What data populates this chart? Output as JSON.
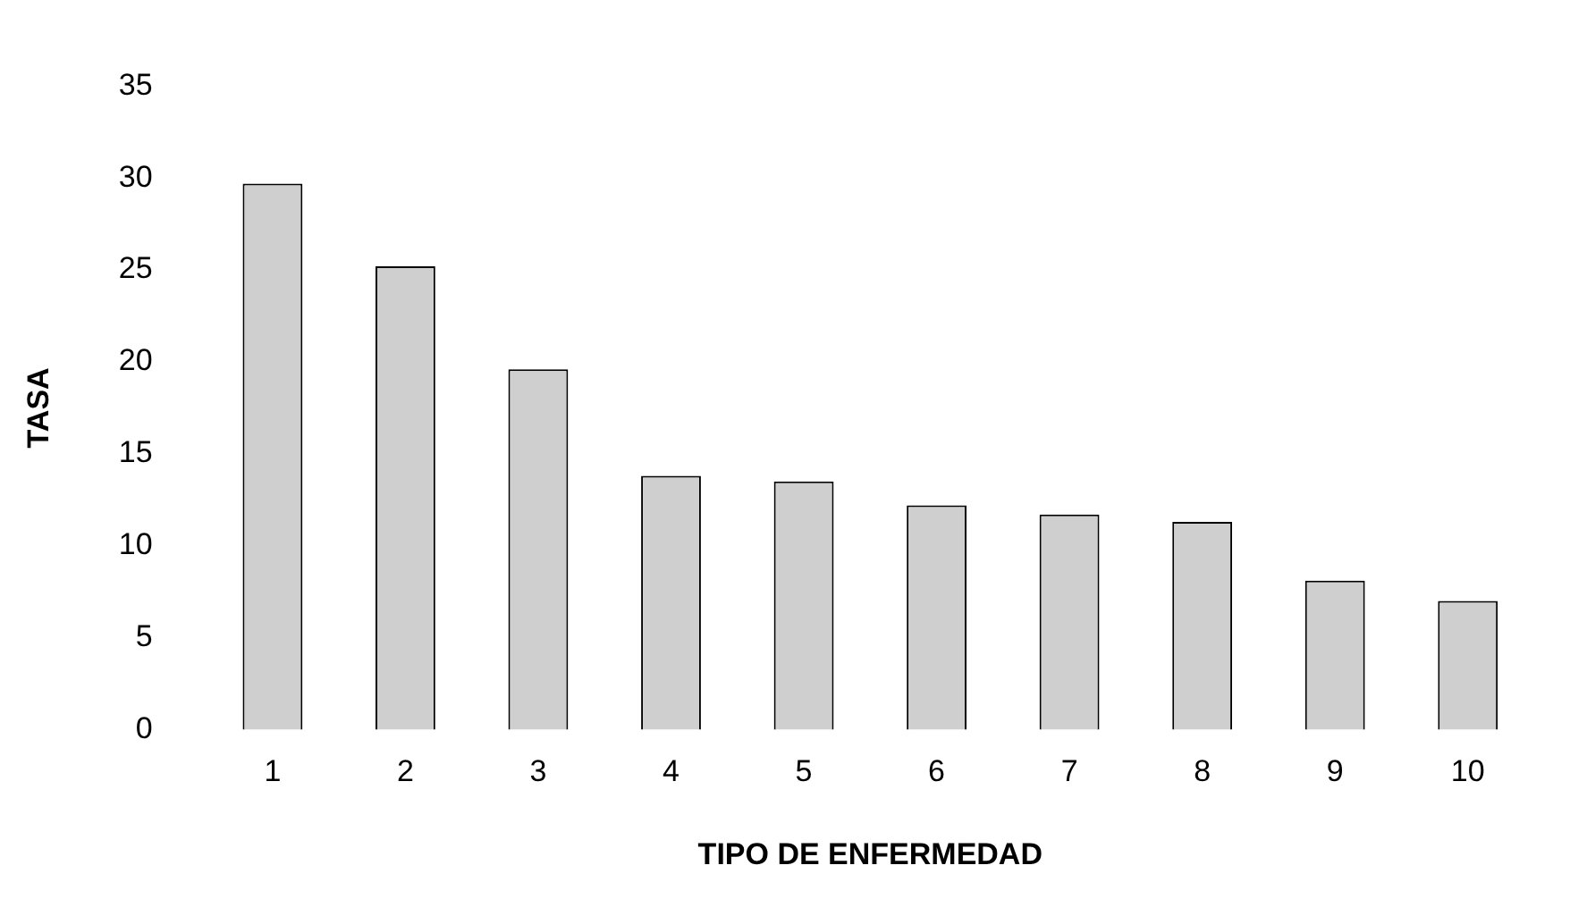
{
  "chart_data": {
    "type": "bar",
    "xlabel": "TIPO DE ENFERMEDAD",
    "ylabel": "TASA",
    "categories": [
      "1",
      "2",
      "3",
      "4",
      "5",
      "6",
      "7",
      "8",
      "9",
      "10"
    ],
    "values": [
      29.7,
      25.2,
      19.6,
      13.8,
      13.5,
      12.2,
      11.7,
      11.3,
      8.1,
      7.0
    ],
    "color": "#cfcfcf",
    "ylim": [
      0,
      35
    ],
    "yticks": [
      0,
      5,
      10,
      15,
      20,
      25,
      30,
      35
    ],
    "grid": false
  }
}
